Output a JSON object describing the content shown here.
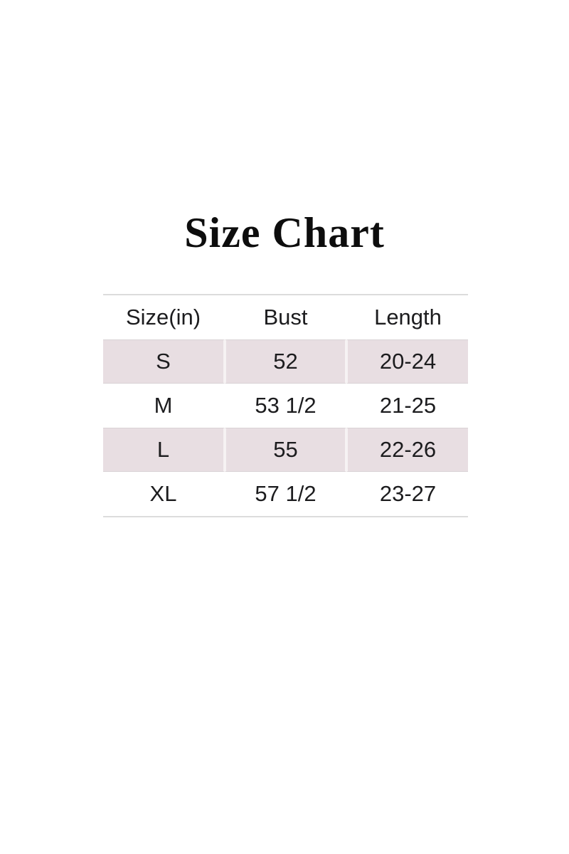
{
  "page": {
    "title": "Size Chart"
  },
  "colors": {
    "row_shade": "#e8dee2",
    "table_border": "#dcdcdc",
    "text": "#1c1c1e"
  },
  "chart_data": {
    "type": "table",
    "title": "Size Chart",
    "columns": [
      "Size(in)",
      "Bust",
      "Length"
    ],
    "rows": [
      {
        "size": "S",
        "bust": "52",
        "length": "20-24",
        "shaded": true
      },
      {
        "size": "M",
        "bust": "53 1/2",
        "length": "21-25",
        "shaded": false
      },
      {
        "size": "L",
        "bust": "55",
        "length": "22-26",
        "shaded": true
      },
      {
        "size": "XL",
        "bust": "57 1/2",
        "length": "23-27",
        "shaded": false
      }
    ]
  }
}
